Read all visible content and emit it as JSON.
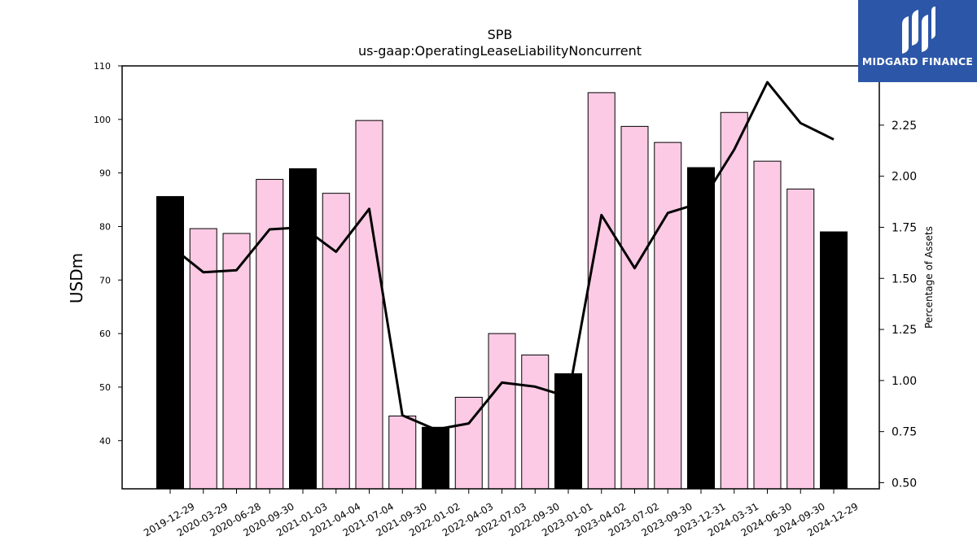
{
  "brand": {
    "name": "MIDGARD FINANCE",
    "color": "#2c56a8"
  },
  "chart_data": {
    "type": "bar",
    "title": "SPB",
    "subtitle": "us-gaap:OperatingLeaseLiabilityNoncurrent",
    "ylabel": "USDm",
    "y2label": "Percentage of Assets",
    "ylim": [
      31,
      110
    ],
    "y2lim": [
      0.47,
      2.54
    ],
    "yticks": [
      40,
      50,
      60,
      70,
      80,
      90,
      100,
      110
    ],
    "y2ticks": [
      0.5,
      0.75,
      1.0,
      1.25,
      1.5,
      1.75,
      2.0,
      2.25
    ],
    "y2tick_labels": [
      "0.50",
      "0.75",
      "1.00",
      "1.25",
      "1.50",
      "1.75",
      "2.00",
      "2.25"
    ],
    "colors": {
      "annual": "#000000",
      "quarterly": "#fccae4",
      "line": "#000000"
    },
    "categories": [
      "2019-12-29",
      "2020-03-29",
      "2020-06-28",
      "2020-09-30",
      "2021-01-03",
      "2021-04-04",
      "2021-07-04",
      "2021-09-30",
      "2022-01-02",
      "2022-04-03",
      "2022-07-03",
      "2022-09-30",
      "2023-01-01",
      "2023-04-02",
      "2023-07-02",
      "2023-09-30",
      "2023-12-31",
      "2024-03-31",
      "2024-06-30",
      "2024-09-30",
      "2024-12-29"
    ],
    "series": [
      {
        "type": "bar",
        "values": [
          85.6,
          79.6,
          78.7,
          88.8,
          90.8,
          86.2,
          99.8,
          44.6,
          42.5,
          48.1,
          60.0,
          56.0,
          52.5,
          105.0,
          98.7,
          95.7,
          91.0,
          101.3,
          92.2,
          87.0,
          79.0
        ],
        "highlight": [
          true,
          false,
          false,
          false,
          true,
          false,
          false,
          false,
          true,
          false,
          false,
          false,
          true,
          false,
          false,
          false,
          true,
          false,
          false,
          false,
          true
        ]
      },
      {
        "type": "line",
        "axis": "right",
        "values": [
          1.66,
          1.53,
          1.54,
          1.74,
          1.75,
          1.63,
          1.84,
          0.83,
          0.76,
          0.79,
          0.99,
          0.97,
          0.92,
          1.81,
          1.55,
          1.82,
          1.87,
          2.13,
          2.46,
          2.26,
          2.18
        ]
      }
    ]
  }
}
